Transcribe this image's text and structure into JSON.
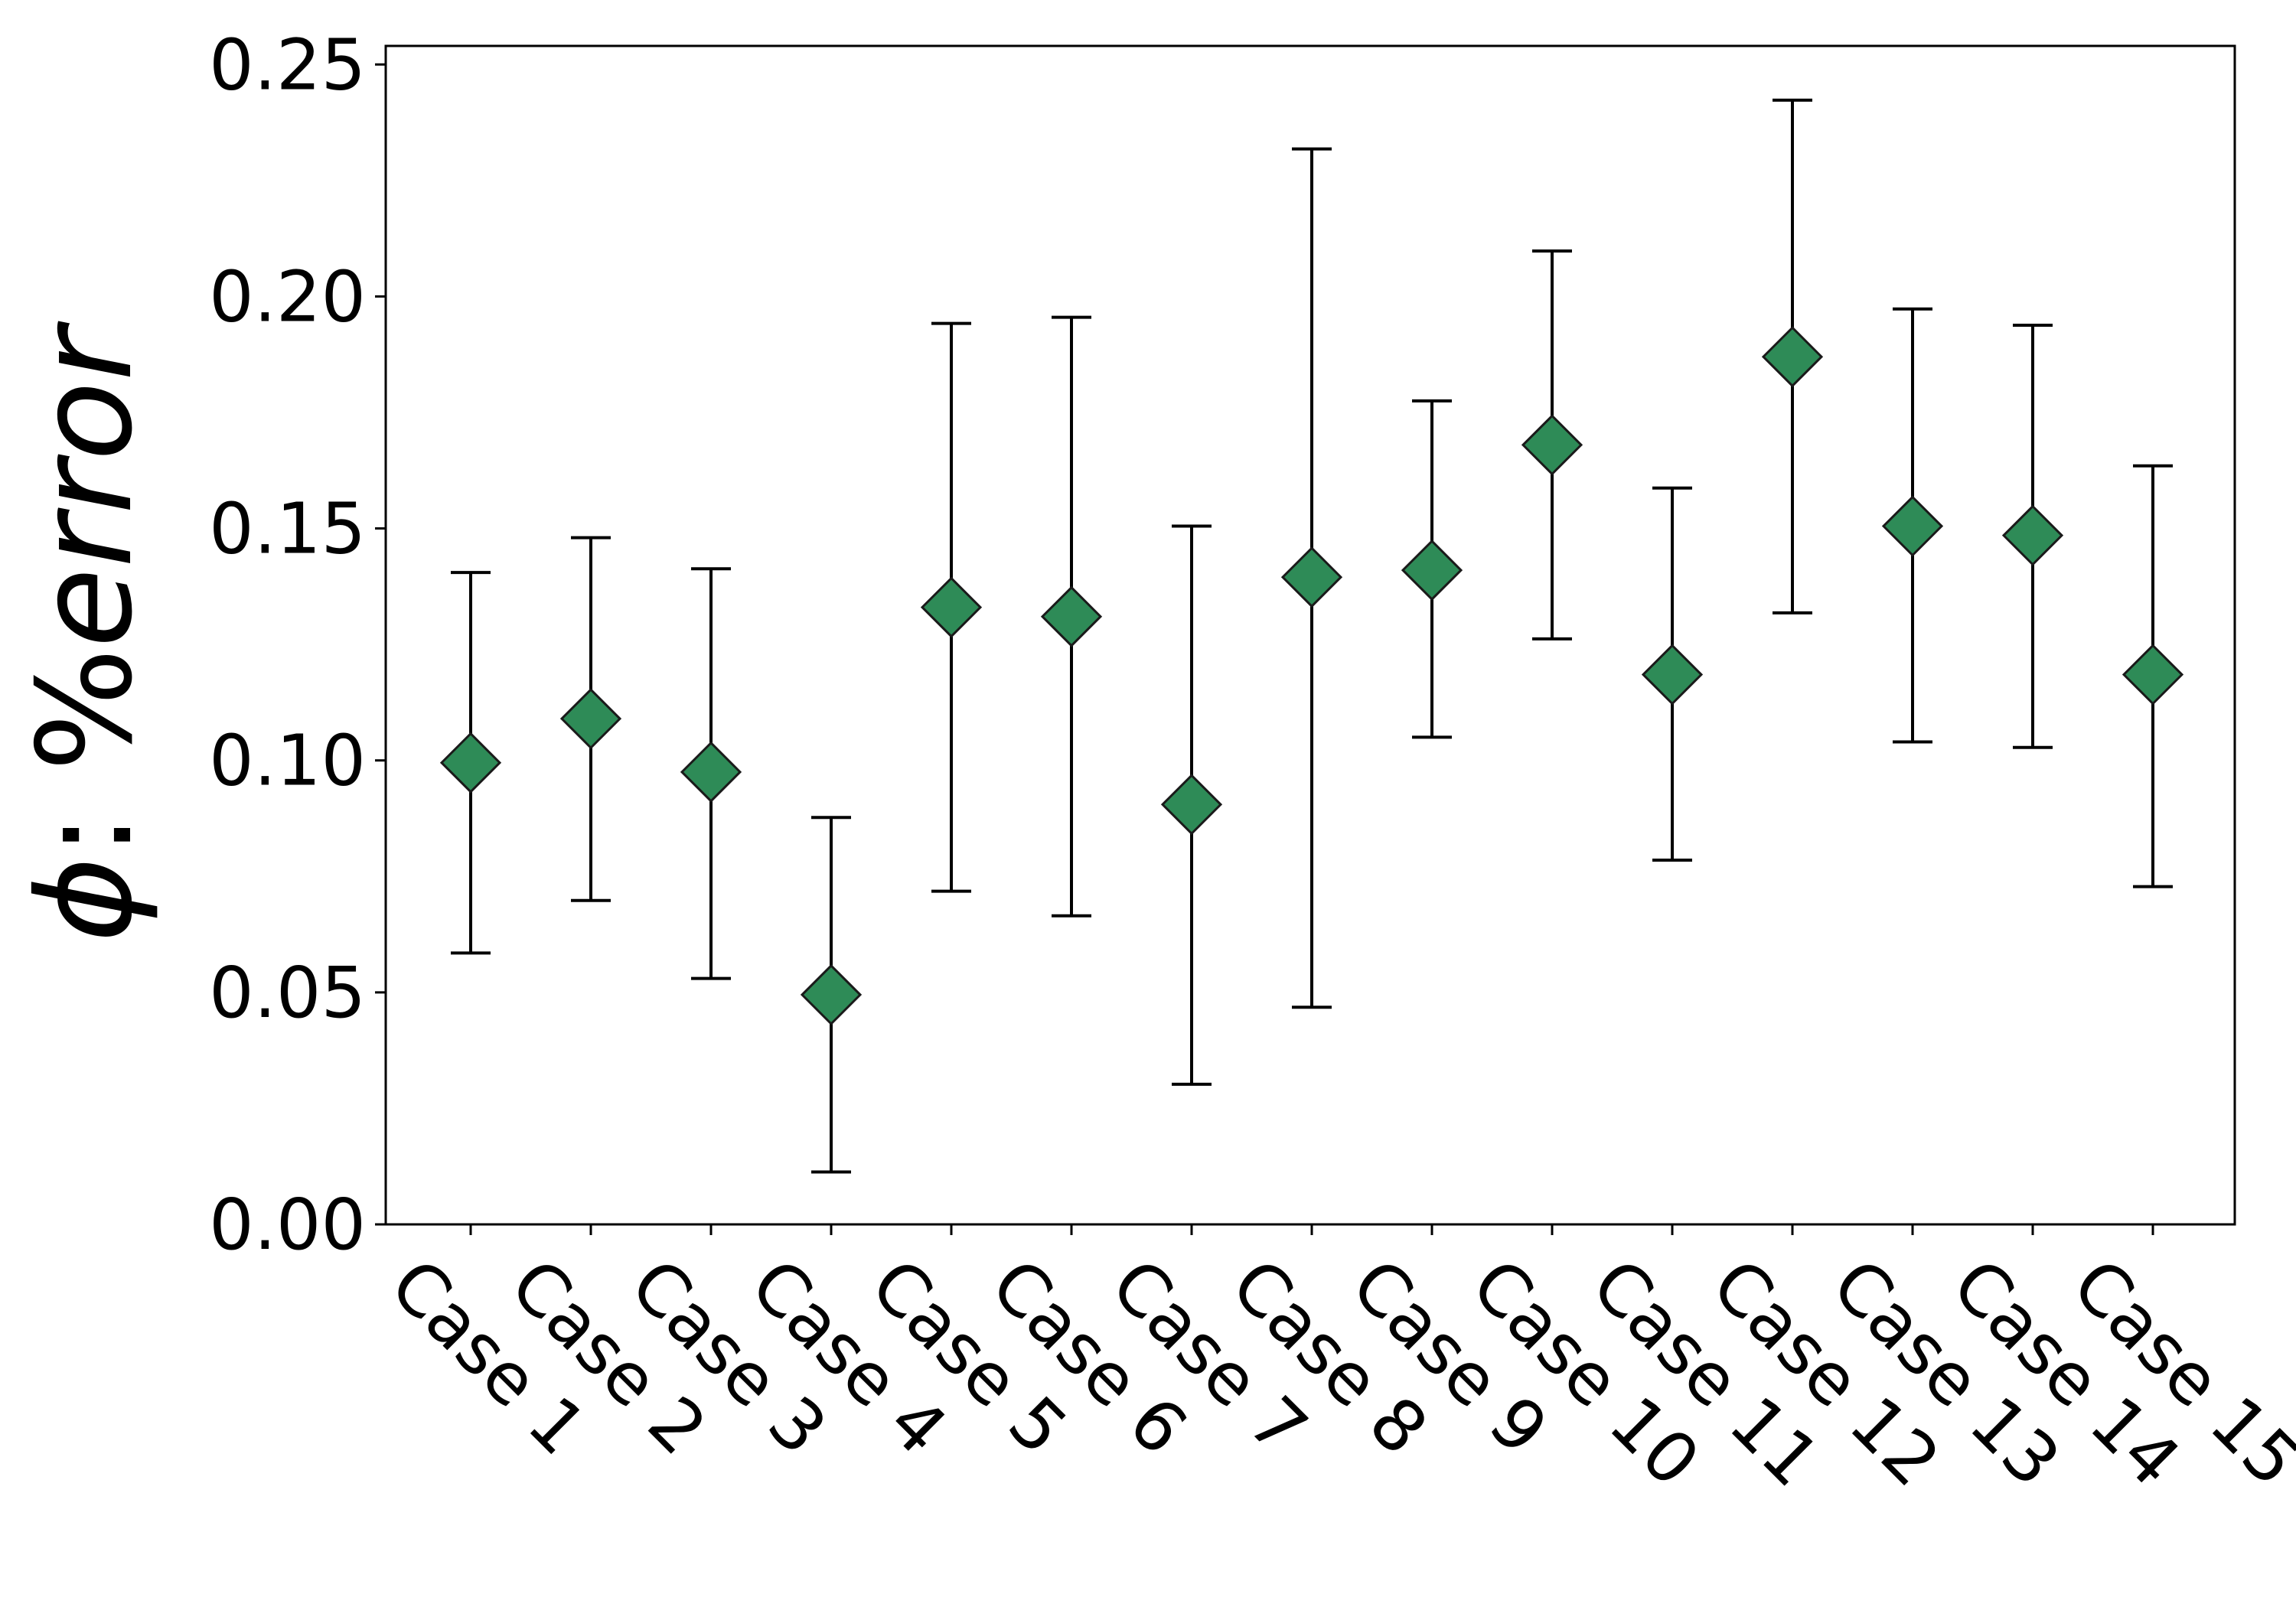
{
  "chart_data": {
    "type": "scatter",
    "title": "",
    "xlabel": "",
    "ylabel": {
      "symbol": "ϕ",
      "sep": ": %",
      "word": "error"
    },
    "categories": [
      "Case 1",
      "Case 2",
      "Case 3",
      "Case 4",
      "Case 5",
      "Case 6",
      "Case 7",
      "Case 8",
      "Case 9",
      "Case 10",
      "Case 11",
      "Case 12",
      "Case 13",
      "Case 14",
      "Case 15"
    ],
    "values": [
      0.0995,
      0.109,
      0.0975,
      0.0495,
      0.133,
      0.131,
      0.0905,
      0.1395,
      0.141,
      0.168,
      0.1185,
      0.187,
      0.1505,
      0.1485,
      0.1185
    ],
    "lower": [
      0.0585,
      0.0698,
      0.053,
      0.0113,
      0.0718,
      0.0665,
      0.0302,
      0.0468,
      0.105,
      0.1262,
      0.0785,
      0.1318,
      0.104,
      0.1028,
      0.0728
    ],
    "upper": [
      0.1405,
      0.148,
      0.1413,
      0.0877,
      0.1942,
      0.1955,
      0.1505,
      0.2318,
      0.1775,
      0.2098,
      0.1587,
      0.2423,
      0.1973,
      0.1938,
      0.1635
    ],
    "ylim": [
      0.0,
      0.254
    ],
    "yticks": [
      "0.00",
      "0.05",
      "0.10",
      "0.15",
      "0.20",
      "0.25"
    ],
    "marker": "diamond",
    "marker_color": "#2e8b57",
    "errorbar_color": "#000000",
    "grid": false
  }
}
